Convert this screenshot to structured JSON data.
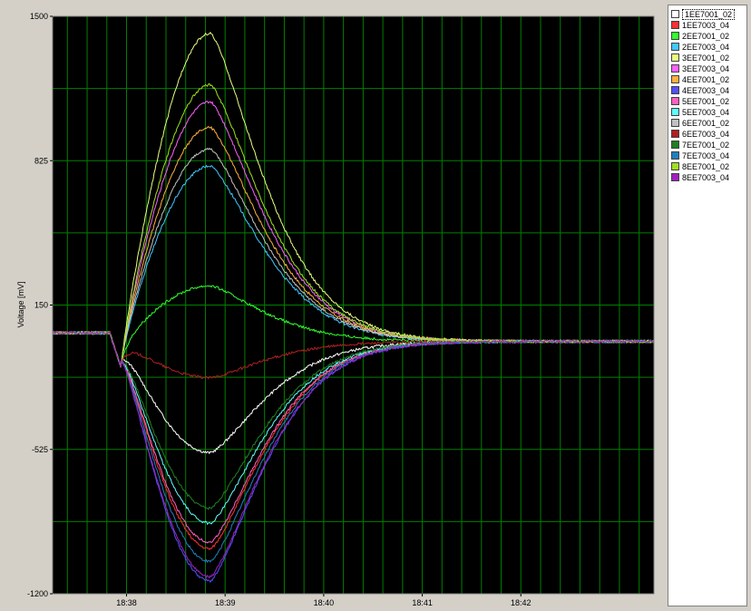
{
  "chart_data": {
    "type": "line",
    "title": "",
    "xlabel": "",
    "ylabel": "Voltage [mV]",
    "x_range_minutes": [
      -0.75,
      5.35
    ],
    "x_ticks": [
      {
        "minute": 0,
        "label": "18:38"
      },
      {
        "minute": 1,
        "label": "18:39"
      },
      {
        "minute": 2,
        "label": "18:40"
      },
      {
        "minute": 3,
        "label": "18:41"
      },
      {
        "minute": 4,
        "label": "18:42"
      }
    ],
    "ylim": [
      -1200,
      1500
    ],
    "y_ticks": [
      1500,
      825,
      150,
      -525,
      -1200
    ],
    "grid": true,
    "legend": "right",
    "background": "#000000",
    "grid_color": "#008000",
    "series": [
      {
        "name": "1EE7001_02",
        "color": "#ffffff",
        "peak": -540,
        "baseline": 0
      },
      {
        "name": "1EE7003_04",
        "color": "#ff3030",
        "peak": -990,
        "baseline": 0
      },
      {
        "name": "2EE7001_02",
        "color": "#30ff30",
        "peak": 240,
        "baseline": 0
      },
      {
        "name": "2EE7003_04",
        "color": "#40c8ff",
        "peak": 800,
        "baseline": 0
      },
      {
        "name": "3EE7001_02",
        "color": "#e8ff80",
        "peak": 1420,
        "baseline": 0
      },
      {
        "name": "3EE7003_04",
        "color": "#ff60ff",
        "peak": 1100,
        "baseline": 0
      },
      {
        "name": "4EE7001_02",
        "color": "#ffb040",
        "peak": 980,
        "baseline": 0
      },
      {
        "name": "4EE7003_04",
        "color": "#5050ff",
        "peak": -1140,
        "baseline": 0
      },
      {
        "name": "5EE7001_02",
        "color": "#ff60c0",
        "peak": -960,
        "baseline": 0
      },
      {
        "name": "5EE7003_04",
        "color": "#60ffff",
        "peak": -870,
        "baseline": 0
      },
      {
        "name": "6EE7001_02",
        "color": "#c0c0c0",
        "peak": 880,
        "baseline": 0
      },
      {
        "name": "6EE7003_04",
        "color": "#b02020",
        "peak": -190,
        "baseline": 0
      },
      {
        "name": "7EE7001_02",
        "color": "#208020",
        "peak": -800,
        "baseline": 0
      },
      {
        "name": "7EE7003_04",
        "color": "#2080c0",
        "peak": -1050,
        "baseline": 0
      },
      {
        "name": "8EE7001_02",
        "color": "#a0e020",
        "peak": 1180,
        "baseline": 0
      },
      {
        "name": "8EE7003_04",
        "color": "#a020c0",
        "peak": -1120,
        "baseline": 0
      }
    ],
    "common_shape": {
      "pre_event_level": 20,
      "event_minute": -0.05,
      "dip_level": -150,
      "peak_minute": 0.85,
      "settle_level": -20
    }
  }
}
